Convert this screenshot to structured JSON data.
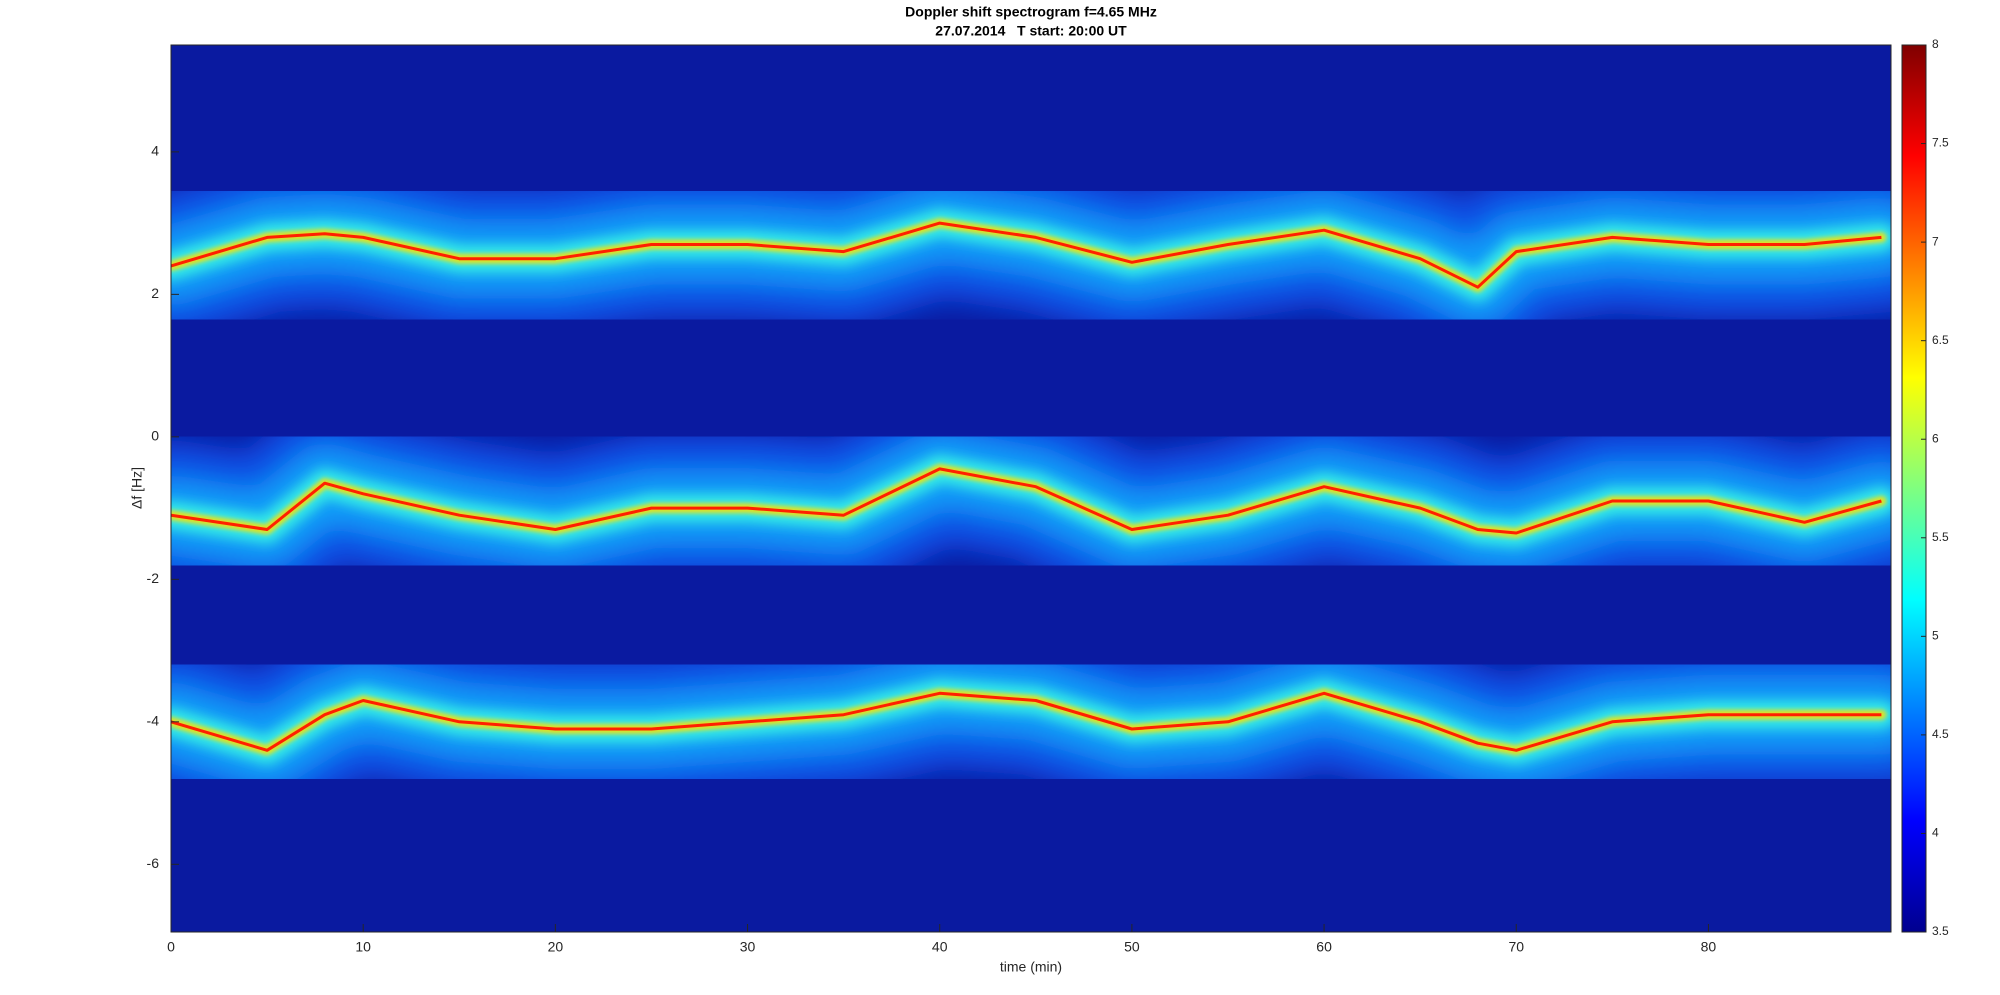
{
  "chart_data": {
    "type": "spectrogram",
    "title": "Doppler shift spectrogram f=4.65 MHz",
    "subtitle": "27.07.2014   T start: 20:00 UT",
    "x_label": "time (min)",
    "y_label": "Δf [Hz]",
    "x": [
      0,
      5,
      8,
      10,
      15,
      20,
      25,
      30,
      35,
      40,
      45,
      50,
      55,
      60,
      65,
      68,
      70,
      75,
      80,
      85,
      89
    ],
    "series": [
      {
        "color": "#ff2000",
        "values": [
          2.4,
          2.8,
          2.85,
          2.8,
          2.5,
          2.5,
          2.7,
          2.7,
          2.6,
          3.0,
          2.8,
          2.45,
          2.7,
          2.9,
          2.5,
          2.1,
          2.6,
          2.8,
          2.7,
          2.7,
          2.8
        ]
      },
      {
        "color": "#ff2000",
        "values": [
          -1.1,
          -1.3,
          -0.65,
          -0.8,
          -1.1,
          -1.3,
          -1.0,
          -1.0,
          -1.1,
          -0.45,
          -0.7,
          -1.3,
          -1.1,
          -0.7,
          -1.0,
          -1.3,
          -1.35,
          -0.9,
          -0.9,
          -1.2,
          -0.9
        ]
      },
      {
        "color": "#ff2000",
        "values": [
          -4.0,
          -4.4,
          -3.9,
          -3.7,
          -4.0,
          -4.1,
          -4.1,
          -4.0,
          -3.9,
          -3.6,
          -3.7,
          -4.1,
          -4.0,
          -3.6,
          -4.0,
          -4.3,
          -4.4,
          -4.0,
          -3.9,
          -3.9,
          -3.9
        ]
      }
    ],
    "xlim": [
      0,
      89.5
    ],
    "ylim": [
      -6.95,
      5.5
    ],
    "xticks": [
      0,
      10,
      20,
      30,
      40,
      50,
      60,
      70,
      80
    ],
    "yticks": [
      -6,
      -4,
      -2,
      0,
      2,
      4
    ],
    "clim": [
      3.5,
      8
    ],
    "cticks": [
      3.5,
      4,
      4.5,
      5,
      5.5,
      6,
      6.5,
      7,
      7.5,
      8
    ],
    "colormap": "jet",
    "background": "#0a1aa0"
  }
}
